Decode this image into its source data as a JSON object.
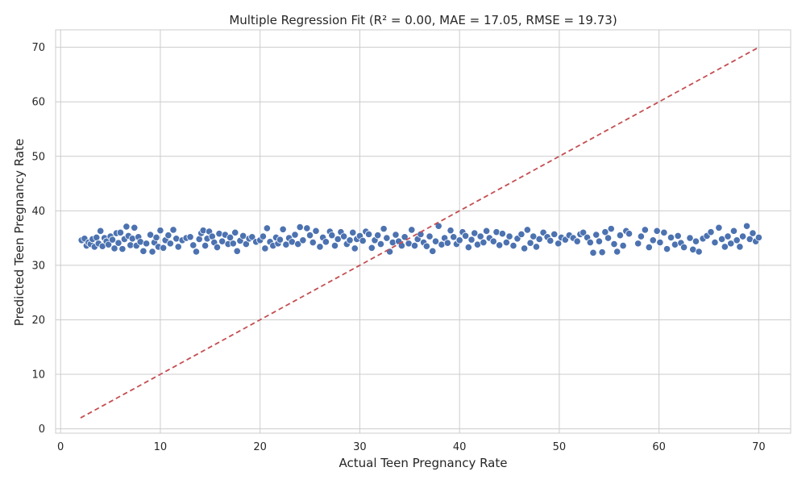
{
  "chart_data": {
    "type": "scatter",
    "title": "Multiple Regression Fit (R² = 0.00, MAE = 17.05, RMSE = 19.73)",
    "xlabel": "Actual Teen Pregnancy Rate",
    "ylabel": "Predicted Teen Pregnancy Rate",
    "xlim": [
      -0.5,
      73.2
    ],
    "ylim": [
      -0.8,
      73.2
    ],
    "xticks": [
      0,
      10,
      20,
      30,
      40,
      50,
      60,
      70
    ],
    "yticks": [
      0,
      10,
      20,
      30,
      40,
      50,
      60,
      70
    ],
    "xtick_labels": [
      "0",
      "10",
      "20",
      "30",
      "40",
      "50",
      "60",
      "70"
    ],
    "ytick_labels": [
      "0",
      "10",
      "20",
      "30",
      "40",
      "50",
      "60",
      "70"
    ],
    "grid": true,
    "point_color": "#4c72b0",
    "reference_line": {
      "from": [
        2,
        2
      ],
      "to": [
        70,
        70
      ],
      "color": "#c44e52",
      "style": "dashed"
    },
    "points": [
      [
        2.1,
        34.6
      ],
      [
        2.4,
        34.9
      ],
      [
        2.6,
        33.6
      ],
      [
        2.8,
        34.2
      ],
      [
        3.0,
        33.9
      ],
      [
        3.2,
        34.8
      ],
      [
        3.4,
        33.4
      ],
      [
        3.6,
        35.1
      ],
      [
        3.8,
        34.0
      ],
      [
        4.0,
        36.3
      ],
      [
        4.2,
        33.5
      ],
      [
        4.4,
        35.0
      ],
      [
        4.6,
        34.4
      ],
      [
        4.8,
        33.8
      ],
      [
        5.0,
        35.3
      ],
      [
        5.2,
        34.7
      ],
      [
        5.4,
        33.1
      ],
      [
        5.6,
        35.9
      ],
      [
        5.8,
        34.1
      ],
      [
        6.0,
        36.0
      ],
      [
        6.2,
        33.0
      ],
      [
        6.4,
        34.8
      ],
      [
        6.6,
        37.1
      ],
      [
        6.8,
        35.4
      ],
      [
        7.0,
        33.7
      ],
      [
        7.2,
        34.9
      ],
      [
        7.4,
        36.9
      ],
      [
        7.6,
        33.6
      ],
      [
        7.8,
        35.2
      ],
      [
        8.0,
        34.3
      ],
      [
        8.3,
        32.6
      ],
      [
        8.6,
        34.0
      ],
      [
        9.0,
        35.6
      ],
      [
        9.2,
        32.5
      ],
      [
        9.4,
        34.2
      ],
      [
        9.6,
        35.1
      ],
      [
        9.8,
        33.4
      ],
      [
        10.0,
        36.4
      ],
      [
        10.3,
        33.2
      ],
      [
        10.5,
        34.6
      ],
      [
        10.8,
        35.5
      ],
      [
        11.0,
        34.0
      ],
      [
        11.3,
        36.5
      ],
      [
        11.6,
        34.9
      ],
      [
        11.8,
        33.4
      ],
      [
        12.2,
        34.6
      ],
      [
        12.6,
        35.0
      ],
      [
        13.0,
        35.2
      ],
      [
        13.3,
        33.7
      ],
      [
        13.6,
        32.5
      ],
      [
        13.9,
        34.8
      ],
      [
        14.1,
        35.9
      ],
      [
        14.3,
        36.4
      ],
      [
        14.5,
        33.6
      ],
      [
        14.7,
        34.9
      ],
      [
        14.9,
        36.2
      ],
      [
        15.2,
        35.3
      ],
      [
        15.4,
        34.2
      ],
      [
        15.7,
        33.3
      ],
      [
        15.9,
        35.8
      ],
      [
        16.2,
        34.4
      ],
      [
        16.5,
        35.6
      ],
      [
        16.8,
        33.9
      ],
      [
        17.0,
        35.1
      ],
      [
        17.3,
        34.0
      ],
      [
        17.5,
        36.0
      ],
      [
        17.7,
        32.6
      ],
      [
        18.0,
        34.5
      ],
      [
        18.3,
        35.4
      ],
      [
        18.6,
        33.9
      ],
      [
        18.9,
        34.9
      ],
      [
        19.2,
        35.2
      ],
      [
        19.6,
        34.3
      ],
      [
        20.0,
        34.6
      ],
      [
        20.3,
        35.3
      ],
      [
        20.5,
        33.1
      ],
      [
        20.7,
        36.8
      ],
      [
        21.0,
        34.3
      ],
      [
        21.3,
        33.6
      ],
      [
        21.6,
        35.1
      ],
      [
        21.8,
        34.0
      ],
      [
        22.0,
        34.7
      ],
      [
        22.3,
        36.6
      ],
      [
        22.6,
        33.8
      ],
      [
        22.9,
        35.0
      ],
      [
        23.2,
        34.3
      ],
      [
        23.5,
        35.6
      ],
      [
        23.8,
        33.9
      ],
      [
        24.0,
        37.0
      ],
      [
        24.3,
        34.6
      ],
      [
        24.7,
        36.8
      ],
      [
        25.0,
        35.5
      ],
      [
        25.3,
        34.2
      ],
      [
        25.6,
        36.3
      ],
      [
        26.0,
        33.4
      ],
      [
        26.3,
        35.1
      ],
      [
        26.6,
        34.3
      ],
      [
        27.0,
        36.2
      ],
      [
        27.2,
        35.5
      ],
      [
        27.5,
        33.6
      ],
      [
        27.8,
        34.8
      ],
      [
        28.1,
        36.1
      ],
      [
        28.4,
        35.3
      ],
      [
        28.7,
        33.9
      ],
      [
        29.0,
        34.6
      ],
      [
        29.3,
        36.0
      ],
      [
        29.5,
        33.1
      ],
      [
        29.7,
        34.8
      ],
      [
        30.0,
        35.4
      ],
      [
        30.3,
        34.5
      ],
      [
        30.6,
        36.2
      ],
      [
        30.9,
        35.7
      ],
      [
        31.2,
        33.2
      ],
      [
        31.5,
        34.6
      ],
      [
        31.8,
        35.5
      ],
      [
        32.1,
        33.9
      ],
      [
        32.4,
        36.7
      ],
      [
        32.7,
        35.0
      ],
      [
        33.0,
        32.5
      ],
      [
        33.3,
        34.2
      ],
      [
        33.6,
        35.6
      ],
      [
        33.9,
        34.4
      ],
      [
        34.2,
        33.6
      ],
      [
        34.5,
        35.2
      ],
      [
        34.9,
        34.0
      ],
      [
        35.2,
        36.5
      ],
      [
        35.5,
        33.6
      ],
      [
        35.8,
        34.8
      ],
      [
        36.1,
        35.7
      ],
      [
        36.4,
        34.2
      ],
      [
        36.7,
        33.5
      ],
      [
        37.0,
        35.3
      ],
      [
        37.3,
        32.6
      ],
      [
        37.6,
        34.4
      ],
      [
        37.9,
        37.2
      ],
      [
        38.2,
        33.8
      ],
      [
        38.5,
        35.0
      ],
      [
        38.8,
        34.1
      ],
      [
        39.1,
        36.4
      ],
      [
        39.4,
        35.2
      ],
      [
        39.7,
        33.9
      ],
      [
        40.0,
        34.6
      ],
      [
        40.3,
        36.1
      ],
      [
        40.6,
        35.4
      ],
      [
        40.9,
        33.3
      ],
      [
        41.2,
        34.7
      ],
      [
        41.5,
        35.9
      ],
      [
        41.8,
        33.8
      ],
      [
        42.1,
        35.3
      ],
      [
        42.4,
        34.2
      ],
      [
        42.7,
        36.3
      ],
      [
        43.0,
        35.0
      ],
      [
        43.4,
        34.4
      ],
      [
        43.7,
        36.1
      ],
      [
        44.0,
        33.7
      ],
      [
        44.3,
        35.8
      ],
      [
        44.7,
        34.2
      ],
      [
        45.0,
        35.3
      ],
      [
        45.4,
        33.6
      ],
      [
        45.8,
        34.9
      ],
      [
        46.2,
        35.7
      ],
      [
        46.5,
        33.1
      ],
      [
        46.8,
        36.5
      ],
      [
        47.1,
        34.1
      ],
      [
        47.4,
        35.3
      ],
      [
        47.7,
        33.4
      ],
      [
        48.0,
        34.8
      ],
      [
        48.4,
        36.0
      ],
      [
        48.8,
        35.2
      ],
      [
        49.1,
        34.5
      ],
      [
        49.5,
        35.7
      ],
      [
        49.9,
        34.0
      ],
      [
        50.2,
        35.1
      ],
      [
        50.6,
        34.7
      ],
      [
        51.0,
        35.5
      ],
      [
        51.4,
        35.0
      ],
      [
        51.8,
        34.4
      ],
      [
        52.1,
        35.7
      ],
      [
        52.4,
        36.0
      ],
      [
        52.8,
        35.1
      ],
      [
        53.1,
        34.2
      ],
      [
        53.4,
        32.3
      ],
      [
        53.7,
        35.6
      ],
      [
        54.0,
        34.4
      ],
      [
        54.3,
        32.4
      ],
      [
        54.6,
        36.1
      ],
      [
        54.9,
        35.0
      ],
      [
        55.2,
        36.7
      ],
      [
        55.5,
        33.9
      ],
      [
        55.8,
        32.5
      ],
      [
        56.1,
        35.5
      ],
      [
        56.4,
        33.6
      ],
      [
        56.7,
        36.3
      ],
      [
        57.0,
        35.8
      ],
      [
        57.9,
        34.0
      ],
      [
        58.2,
        35.3
      ],
      [
        58.6,
        36.5
      ],
      [
        59.0,
        33.3
      ],
      [
        59.4,
        34.6
      ],
      [
        59.8,
        36.3
      ],
      [
        60.1,
        34.2
      ],
      [
        60.5,
        36.0
      ],
      [
        60.8,
        33.0
      ],
      [
        61.2,
        35.1
      ],
      [
        61.6,
        33.8
      ],
      [
        61.9,
        35.4
      ],
      [
        62.2,
        34.1
      ],
      [
        62.5,
        33.3
      ],
      [
        63.1,
        35.0
      ],
      [
        63.4,
        32.9
      ],
      [
        63.7,
        34.4
      ],
      [
        64.0,
        32.5
      ],
      [
        64.4,
        34.9
      ],
      [
        64.8,
        35.4
      ],
      [
        65.2,
        36.1
      ],
      [
        65.6,
        34.2
      ],
      [
        66.0,
        36.9
      ],
      [
        66.3,
        34.8
      ],
      [
        66.6,
        33.4
      ],
      [
        66.9,
        35.3
      ],
      [
        67.2,
        34.0
      ],
      [
        67.5,
        36.3
      ],
      [
        67.8,
        34.6
      ],
      [
        68.1,
        33.4
      ],
      [
        68.4,
        35.3
      ],
      [
        68.8,
        37.2
      ],
      [
        69.1,
        34.8
      ],
      [
        69.4,
        35.9
      ],
      [
        69.7,
        34.4
      ],
      [
        70.0,
        35.1
      ]
    ]
  }
}
